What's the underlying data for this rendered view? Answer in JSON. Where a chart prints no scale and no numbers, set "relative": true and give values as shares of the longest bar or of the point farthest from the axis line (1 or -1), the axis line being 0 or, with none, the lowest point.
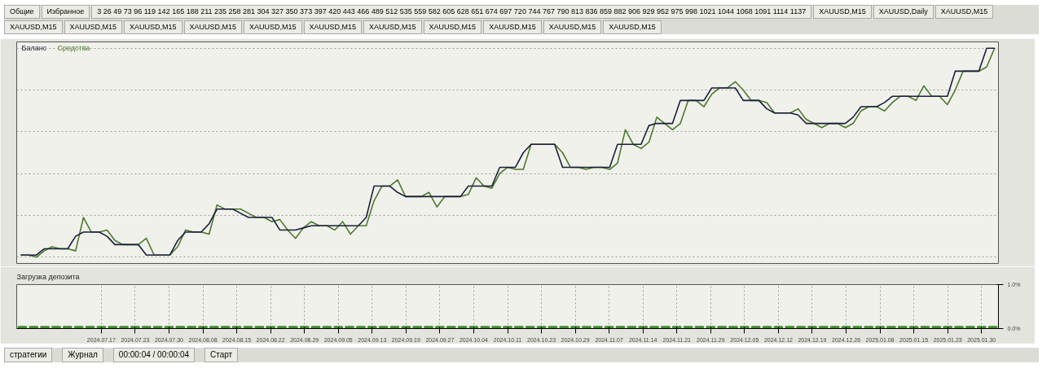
{
  "chart_data": [
    {
      "type": "line",
      "relative": true,
      "tick_labels": false,
      "grid": true,
      "legend": "top left",
      "categories": [
        null,
        null,
        null,
        null,
        null,
        null,
        null,
        null,
        null,
        null,
        null,
        null,
        null,
        null,
        null,
        null,
        null,
        null,
        null,
        null,
        null,
        null,
        null,
        null,
        null,
        null,
        null,
        null,
        null,
        null,
        null,
        null,
        null,
        null,
        null,
        null,
        null,
        null,
        null,
        null,
        null,
        null,
        null,
        null,
        null,
        null,
        null,
        null,
        null,
        null,
        null,
        null,
        null,
        null,
        null,
        null,
        null,
        null,
        null,
        null,
        null,
        null,
        null,
        null,
        null,
        null,
        null,
        null,
        null,
        null,
        null,
        null,
        null,
        null,
        null,
        null,
        null,
        null,
        null,
        null,
        null,
        null,
        null,
        null,
        null,
        null,
        null,
        null,
        null,
        null,
        null,
        null,
        null,
        null,
        null,
        null,
        null,
        null,
        null,
        null,
        null,
        null,
        null,
        null,
        null,
        null,
        null,
        null,
        null,
        null,
        null,
        null,
        null,
        null,
        null,
        null,
        null,
        null,
        null,
        null,
        null,
        null,
        null,
        null,
        null
      ],
      "series": [
        {
          "name": "Средства",
          "color": "#4a7a2c",
          "values": [
            0.01,
            0.01,
            0.0,
            0.03,
            0.05,
            0.04,
            0.04,
            0.03,
            0.19,
            0.12,
            0.12,
            0.13,
            0.08,
            0.06,
            0.06,
            0.06,
            0.09,
            0.01,
            0.01,
            0.01,
            0.05,
            0.13,
            0.12,
            0.12,
            0.11,
            0.25,
            0.23,
            0.23,
            0.23,
            0.21,
            0.19,
            0.19,
            0.17,
            0.18,
            0.13,
            0.09,
            0.14,
            0.17,
            0.15,
            0.15,
            0.13,
            0.17,
            0.11,
            0.15,
            0.15,
            0.27,
            0.34,
            0.34,
            0.37,
            0.29,
            0.29,
            0.29,
            0.31,
            0.24,
            0.29,
            0.29,
            0.29,
            0.3,
            0.38,
            0.34,
            0.33,
            0.4,
            0.43,
            0.42,
            0.42,
            0.54,
            0.54,
            0.54,
            0.54,
            0.5,
            0.43,
            0.43,
            0.42,
            0.43,
            0.43,
            0.42,
            0.45,
            0.61,
            0.54,
            0.52,
            0.55,
            0.67,
            0.64,
            0.61,
            0.64,
            0.75,
            0.75,
            0.72,
            0.78,
            0.81,
            0.81,
            0.84,
            0.8,
            0.75,
            0.75,
            0.74,
            0.69,
            0.69,
            0.69,
            0.71,
            0.66,
            0.64,
            0.62,
            0.64,
            0.64,
            0.62,
            0.64,
            0.7,
            0.72,
            0.72,
            0.7,
            0.74,
            0.77,
            0.77,
            0.75,
            0.82,
            0.77,
            0.77,
            0.73,
            0.8,
            0.89,
            0.89,
            0.89,
            0.91,
            1
          ]
        },
        {
          "name": "Баланс",
          "color": "#1a1f3a",
          "values": [
            0.01,
            0.01,
            0.01,
            0.04,
            0.04,
            0.04,
            0.04,
            0.1,
            0.12,
            0.12,
            0.12,
            0.1,
            0.06,
            0.06,
            0.06,
            0.06,
            0.01,
            0.01,
            0.01,
            0.01,
            0.08,
            0.12,
            0.12,
            0.12,
            0.16,
            0.23,
            0.23,
            0.23,
            0.21,
            0.19,
            0.19,
            0.19,
            0.19,
            0.13,
            0.13,
            0.13,
            0.14,
            0.15,
            0.15,
            0.15,
            0.15,
            0.15,
            0.15,
            0.15,
            0.19,
            0.34,
            0.34,
            0.34,
            0.31,
            0.29,
            0.29,
            0.29,
            0.29,
            0.29,
            0.29,
            0.29,
            0.29,
            0.34,
            0.34,
            0.34,
            0.34,
            0.43,
            0.43,
            0.43,
            0.5,
            0.54,
            0.54,
            0.54,
            0.54,
            0.43,
            0.43,
            0.43,
            0.43,
            0.43,
            0.43,
            0.43,
            0.54,
            0.54,
            0.54,
            0.54,
            0.63,
            0.64,
            0.64,
            0.64,
            0.75,
            0.75,
            0.75,
            0.75,
            0.81,
            0.81,
            0.81,
            0.81,
            0.75,
            0.75,
            0.75,
            0.71,
            0.69,
            0.69,
            0.69,
            0.68,
            0.64,
            0.64,
            0.64,
            0.64,
            0.64,
            0.64,
            0.67,
            0.72,
            0.72,
            0.72,
            0.74,
            0.77,
            0.77,
            0.77,
            0.77,
            0.77,
            0.77,
            0.77,
            0.77,
            0.89,
            0.89,
            0.89,
            0.89,
            1,
            1
          ]
        }
      ],
      "annotations": [
        "Общие",
        "Избранное",
        "3 26 49 73 96 119 142 165 188 211 235 258 281 304 327 350 373 397 420 443 466 489 512 535 559 582 605 628 651 674 697 720 744 767 790 813 836 859 882 906 929 952 975 998 1021 1044 1068 1091 1114 1137",
        "XAUUSD,M15",
        "XAUUSD,Daily",
        "XAUUSD,M15",
        "XAUUSD,M15",
        "XAUUSD,M15",
        "XAUUSD,M15",
        "XAUUSD,M15",
        "XAUUSD,M15",
        "XAUUSD,M15",
        "XAUUSD,M15",
        "XAUUSD,M15",
        "XAUUSD,M15",
        "XAUUSD,M15",
        "XAUUSD,M15",
        "стратегии",
        "Журнал",
        "00:00:04 / 00:00:04",
        "Старт"
      ]
    },
    {
      "type": "bar",
      "title": "Загрузка депозита",
      "grid": true,
      "color": "#3f8f2f",
      "categories": [
        null,
        null,
        null,
        null,
        null,
        null,
        null,
        "2024.07.17",
        null,
        null,
        "2024.07.23",
        null,
        null,
        "2024.07.30",
        null,
        null,
        "2024.08.08",
        null,
        null,
        "2024.08.15",
        null,
        null,
        "2024.08.22",
        null,
        null,
        "2024.08.29",
        null,
        null,
        "2024.09.05",
        null,
        null,
        "2024.09.13",
        null,
        null,
        "2024.09.19",
        null,
        null,
        "2024.09.27",
        null,
        null,
        "2024.10.04",
        null,
        null,
        "2024.10.11",
        null,
        null,
        "2024.10.23",
        null,
        null,
        "2024.10.29",
        null,
        null,
        "2024.11.07",
        null,
        null,
        "2024.11.14",
        null,
        null,
        "2024.11.21",
        null,
        null,
        "2024.11.29",
        null,
        null,
        "2024.12.05",
        null,
        null,
        "2024.12.12",
        null,
        null,
        "2024.12.19",
        null,
        null,
        "2024.12.26",
        null,
        null,
        "2025.01.08",
        null,
        null,
        "2025.01.15",
        null,
        null,
        "2025.01.23",
        null,
        null,
        "2025.01.30",
        null
      ],
      "values": [
        0.05,
        0.05,
        0.05,
        0.05,
        0.05,
        0.05,
        0.05,
        0.05,
        0.05,
        0.05,
        0.05,
        0.05,
        0.05,
        0.05,
        0.05,
        0.05,
        0.05,
        0.05,
        0.05,
        0.05,
        0.05,
        0.05,
        0.05,
        0.05,
        0.05,
        0.05,
        0.05,
        0.05,
        0.05,
        0.05,
        0.05,
        0.05,
        0.05,
        0.05,
        0.05,
        0.05,
        0.05,
        0.05,
        0.05,
        0.05,
        0.05,
        0.05,
        0.05,
        0.05,
        0.05,
        0.05,
        0.05,
        0.05,
        0.05,
        0.05,
        0.05,
        0.05,
        0.05,
        0.05,
        0.05,
        0.05,
        0.05,
        0.05,
        0.05,
        0.05,
        0.05,
        0.05,
        0.05,
        0.05,
        0.05,
        0.05,
        0.05,
        0.05,
        0.05,
        0.05,
        0.05,
        0.05,
        0.05,
        0.05,
        0.05,
        0.05,
        0.05,
        0.05,
        0.05,
        0.05,
        0.05,
        0.05,
        0.05,
        0.05,
        0.05,
        0.05,
        0.05
      ],
      "ylim": [
        0,
        1
      ],
      "yticks": [
        {
          "value": 0,
          "label": "0.0%"
        },
        {
          "value": 1,
          "label": "1.0%"
        }
      ]
    }
  ]
}
